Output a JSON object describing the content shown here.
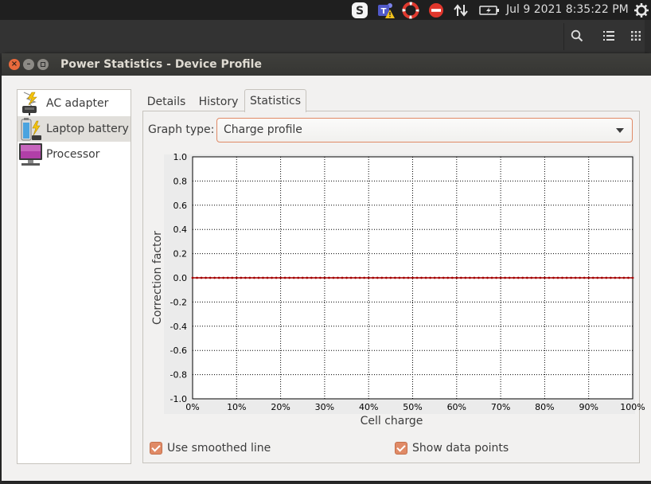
{
  "panel": {
    "clock": "Jul  9 2021  8:35:22 PM",
    "tray_icons": [
      "skype-icon",
      "teams-icon",
      "lifebuoy-icon",
      "do-not-disturb-icon",
      "network-icon",
      "battery-icon",
      "gear-icon"
    ]
  },
  "window": {
    "title": "Power Statistics - Device Profile"
  },
  "devices": [
    {
      "label": "AC adapter",
      "icon": "ac-adapter-icon",
      "selected": false
    },
    {
      "label": "Laptop battery",
      "icon": "laptop-battery-icon",
      "selected": true
    },
    {
      "label": "Processor",
      "icon": "processor-icon",
      "selected": false
    }
  ],
  "tabs": [
    {
      "label": "Details",
      "active": false
    },
    {
      "label": "History",
      "active": false
    },
    {
      "label": "Statistics",
      "active": true
    }
  ],
  "graph_type": {
    "label": "Graph type:",
    "value": "Charge profile"
  },
  "options": {
    "smoothed_label": "Use smoothed line",
    "smoothed_checked": true,
    "points_label": "Show data points",
    "points_checked": true
  },
  "chart_data": {
    "type": "line",
    "xlabel": "Cell charge",
    "ylabel": "Correction factor",
    "xlim": [
      0,
      100
    ],
    "ylim": [
      -1.0,
      1.0
    ],
    "x_ticks": [
      "0%",
      "10%",
      "20%",
      "30%",
      "40%",
      "50%",
      "60%",
      "70%",
      "80%",
      "90%",
      "100%"
    ],
    "y_ticks": [
      "1.0",
      "0.8",
      "0.6",
      "0.4",
      "0.2",
      "0.0",
      "-0.2",
      "-0.4",
      "-0.6",
      "-0.8",
      "-1.0"
    ],
    "grid": true,
    "series": [
      {
        "color": "#a40000",
        "x": [
          0,
          1,
          2,
          3,
          4,
          5,
          6,
          7,
          8,
          9,
          10,
          11,
          12,
          13,
          14,
          15,
          16,
          17,
          18,
          19,
          20,
          21,
          22,
          23,
          24,
          25,
          26,
          27,
          28,
          29,
          30,
          31,
          32,
          33,
          34,
          35,
          36,
          37,
          38,
          39,
          40,
          41,
          42,
          43,
          44,
          45,
          46,
          47,
          48,
          49,
          50,
          51,
          52,
          53,
          54,
          55,
          56,
          57,
          58,
          59,
          60,
          61,
          62,
          63,
          64,
          65,
          66,
          67,
          68,
          69,
          70,
          71,
          72,
          73,
          74,
          75,
          76,
          77,
          78,
          79,
          80,
          81,
          82,
          83,
          84,
          85,
          86,
          87,
          88,
          89,
          90,
          91,
          92,
          93,
          94,
          95,
          96,
          97,
          98,
          99,
          100
        ],
        "y": [
          0,
          0,
          0,
          0,
          0,
          0,
          0,
          0,
          0,
          0,
          0,
          0,
          0,
          0,
          0,
          0,
          0,
          0,
          0,
          0,
          0,
          0,
          0,
          0,
          0,
          0,
          0,
          0,
          0,
          0,
          0,
          0,
          0,
          0,
          0,
          0,
          0,
          0,
          0,
          0,
          0,
          0,
          0,
          0,
          0,
          0,
          0,
          0,
          0,
          0,
          0,
          0,
          0,
          0,
          0,
          0,
          0,
          0,
          0,
          0,
          0,
          0,
          0,
          0,
          0,
          0,
          0,
          0,
          0,
          0,
          0,
          0,
          0,
          0,
          0,
          0,
          0,
          0,
          0,
          0,
          0,
          0,
          0,
          0,
          0,
          0,
          0,
          0,
          0,
          0,
          0,
          0,
          0,
          0,
          0,
          0,
          0,
          0,
          0,
          0,
          0
        ]
      }
    ]
  }
}
